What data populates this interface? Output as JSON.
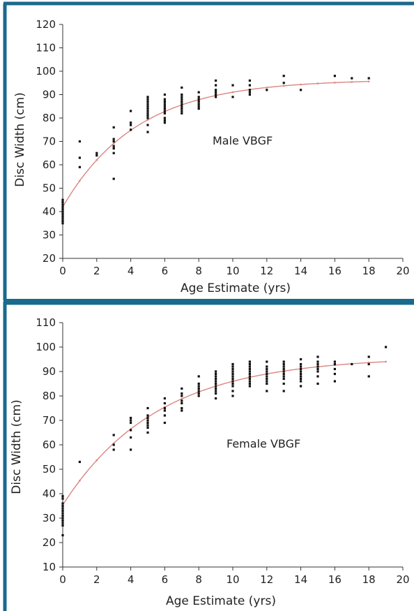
{
  "colors": {
    "frame": "#1a6a8c",
    "curve": "#d98580",
    "points": "#111111",
    "axis": "#333333"
  },
  "chart_data": [
    {
      "type": "scatter",
      "title": "",
      "xlabel": "Age Estimate (yrs)",
      "ylabel": "Disc Width (cm)",
      "annotation": "Male VBGF",
      "xlim": [
        0,
        20
      ],
      "ylim": [
        20,
        120
      ],
      "xticks": [
        "0",
        "2",
        "4",
        "6",
        "8",
        "10",
        "12",
        "14",
        "16",
        "18",
        "20"
      ],
      "yticks": [
        "20",
        "30",
        "40",
        "50",
        "60",
        "70",
        "80",
        "90",
        "100",
        "110",
        "120"
      ],
      "grid": false,
      "points": [
        [
          0,
          35
        ],
        [
          0,
          36
        ],
        [
          0,
          37
        ],
        [
          0,
          38
        ],
        [
          0,
          39
        ],
        [
          0,
          40
        ],
        [
          0,
          41
        ],
        [
          0,
          42
        ],
        [
          0,
          43
        ],
        [
          0,
          44
        ],
        [
          0,
          45
        ],
        [
          1,
          59
        ],
        [
          1,
          63
        ],
        [
          1,
          70
        ],
        [
          2,
          64
        ],
        [
          2,
          65
        ],
        [
          3,
          54
        ],
        [
          3,
          65
        ],
        [
          3,
          67
        ],
        [
          3,
          68
        ],
        [
          3,
          70
        ],
        [
          3,
          71
        ],
        [
          3,
          76
        ],
        [
          4,
          75
        ],
        [
          4,
          77
        ],
        [
          4,
          78
        ],
        [
          4,
          83
        ],
        [
          5,
          74
        ],
        [
          5,
          77
        ],
        [
          5,
          80
        ],
        [
          5,
          81
        ],
        [
          5,
          82
        ],
        [
          5,
          83
        ],
        [
          5,
          84
        ],
        [
          5,
          85
        ],
        [
          5,
          86
        ],
        [
          5,
          87
        ],
        [
          5,
          88
        ],
        [
          5,
          89
        ],
        [
          6,
          78
        ],
        [
          6,
          79
        ],
        [
          6,
          80
        ],
        [
          6,
          82
        ],
        [
          6,
          83
        ],
        [
          6,
          84
        ],
        [
          6,
          85
        ],
        [
          6,
          86
        ],
        [
          6,
          87
        ],
        [
          6,
          88
        ],
        [
          6,
          90
        ],
        [
          7,
          82
        ],
        [
          7,
          83
        ],
        [
          7,
          84
        ],
        [
          7,
          85
        ],
        [
          7,
          86
        ],
        [
          7,
          87
        ],
        [
          7,
          88
        ],
        [
          7,
          89
        ],
        [
          7,
          90
        ],
        [
          7,
          93
        ],
        [
          8,
          84
        ],
        [
          8,
          85
        ],
        [
          8,
          86
        ],
        [
          8,
          87
        ],
        [
          8,
          88
        ],
        [
          8,
          89
        ],
        [
          8,
          91
        ],
        [
          9,
          89
        ],
        [
          9,
          90
        ],
        [
          9,
          91
        ],
        [
          9,
          92
        ],
        [
          9,
          94
        ],
        [
          9,
          96
        ],
        [
          10,
          89
        ],
        [
          10,
          94
        ],
        [
          11,
          90
        ],
        [
          11,
          91
        ],
        [
          11,
          92
        ],
        [
          11,
          94
        ],
        [
          11,
          96
        ],
        [
          12,
          92
        ],
        [
          13,
          95
        ],
        [
          13,
          98
        ],
        [
          14,
          92
        ],
        [
          16,
          98
        ],
        [
          17,
          97
        ],
        [
          18,
          97
        ]
      ],
      "curve": {
        "Linf": 96.5,
        "K": 0.23,
        "t0": -2.48
      }
    },
    {
      "type": "scatter",
      "title": "",
      "xlabel": "Age Estimate (yrs)",
      "ylabel": "Disc Width (cm)",
      "annotation": "Female VBGF",
      "xlim": [
        0,
        20
      ],
      "ylim": [
        10,
        110
      ],
      "xticks": [
        "0",
        "2",
        "4",
        "6",
        "8",
        "10",
        "12",
        "14",
        "16",
        "18",
        "20"
      ],
      "yticks": [
        "10",
        "20",
        "30",
        "40",
        "50",
        "60",
        "70",
        "80",
        "90",
        "100",
        "110"
      ],
      "grid": false,
      "points": [
        [
          0,
          23
        ],
        [
          0,
          27
        ],
        [
          0,
          28
        ],
        [
          0,
          29
        ],
        [
          0,
          30
        ],
        [
          0,
          31
        ],
        [
          0,
          32
        ],
        [
          0,
          33
        ],
        [
          0,
          34
        ],
        [
          0,
          35
        ],
        [
          0,
          36
        ],
        [
          0,
          38
        ],
        [
          0,
          39
        ],
        [
          1,
          53
        ],
        [
          3,
          58
        ],
        [
          3,
          60
        ],
        [
          3,
          64
        ],
        [
          4,
          58
        ],
        [
          4,
          63
        ],
        [
          4,
          66
        ],
        [
          4,
          69
        ],
        [
          4,
          70
        ],
        [
          4,
          71
        ],
        [
          5,
          65
        ],
        [
          5,
          67
        ],
        [
          5,
          68
        ],
        [
          5,
          69
        ],
        [
          5,
          70
        ],
        [
          5,
          71
        ],
        [
          5,
          72
        ],
        [
          5,
          75
        ],
        [
          6,
          69
        ],
        [
          6,
          72
        ],
        [
          6,
          74
        ],
        [
          6,
          75
        ],
        [
          6,
          77
        ],
        [
          6,
          79
        ],
        [
          7,
          74
        ],
        [
          7,
          75
        ],
        [
          7,
          77
        ],
        [
          7,
          78
        ],
        [
          7,
          80
        ],
        [
          7,
          81
        ],
        [
          7,
          83
        ],
        [
          8,
          80
        ],
        [
          8,
          81
        ],
        [
          8,
          82
        ],
        [
          8,
          83
        ],
        [
          8,
          84
        ],
        [
          8,
          85
        ],
        [
          8,
          88
        ],
        [
          9,
          79
        ],
        [
          9,
          81
        ],
        [
          9,
          82
        ],
        [
          9,
          83
        ],
        [
          9,
          84
        ],
        [
          9,
          85
        ],
        [
          9,
          86
        ],
        [
          9,
          87
        ],
        [
          9,
          88
        ],
        [
          9,
          89
        ],
        [
          9,
          90
        ],
        [
          10,
          80
        ],
        [
          10,
          82
        ],
        [
          10,
          84
        ],
        [
          10,
          85
        ],
        [
          10,
          86
        ],
        [
          10,
          87
        ],
        [
          10,
          88
        ],
        [
          10,
          89
        ],
        [
          10,
          90
        ],
        [
          10,
          91
        ],
        [
          10,
          92
        ],
        [
          10,
          93
        ],
        [
          11,
          84
        ],
        [
          11,
          85
        ],
        [
          11,
          86
        ],
        [
          11,
          87
        ],
        [
          11,
          88
        ],
        [
          11,
          89
        ],
        [
          11,
          90
        ],
        [
          11,
          91
        ],
        [
          11,
          92
        ],
        [
          11,
          93
        ],
        [
          11,
          94
        ],
        [
          12,
          82
        ],
        [
          12,
          85
        ],
        [
          12,
          86
        ],
        [
          12,
          87
        ],
        [
          12,
          88
        ],
        [
          12,
          89
        ],
        [
          12,
          90
        ],
        [
          12,
          91
        ],
        [
          12,
          92
        ],
        [
          12,
          94
        ],
        [
          13,
          82
        ],
        [
          13,
          85
        ],
        [
          13,
          87
        ],
        [
          13,
          88
        ],
        [
          13,
          89
        ],
        [
          13,
          90
        ],
        [
          13,
          91
        ],
        [
          13,
          92
        ],
        [
          13,
          93
        ],
        [
          13,
          94
        ],
        [
          14,
          84
        ],
        [
          14,
          86
        ],
        [
          14,
          87
        ],
        [
          14,
          88
        ],
        [
          14,
          89
        ],
        [
          14,
          90
        ],
        [
          14,
          91
        ],
        [
          14,
          92
        ],
        [
          14,
          93
        ],
        [
          14,
          95
        ],
        [
          15,
          85
        ],
        [
          15,
          88
        ],
        [
          15,
          90
        ],
        [
          15,
          91
        ],
        [
          15,
          92
        ],
        [
          15,
          93
        ],
        [
          15,
          94
        ],
        [
          15,
          96
        ],
        [
          16,
          86
        ],
        [
          16,
          89
        ],
        [
          16,
          91
        ],
        [
          16,
          93
        ],
        [
          16,
          94
        ],
        [
          17,
          93
        ],
        [
          18,
          88
        ],
        [
          18,
          93
        ],
        [
          18,
          96
        ],
        [
          19,
          100
        ]
      ],
      "curve": {
        "Linf": 96.0,
        "K": 0.18,
        "t0": -2.55
      }
    }
  ]
}
